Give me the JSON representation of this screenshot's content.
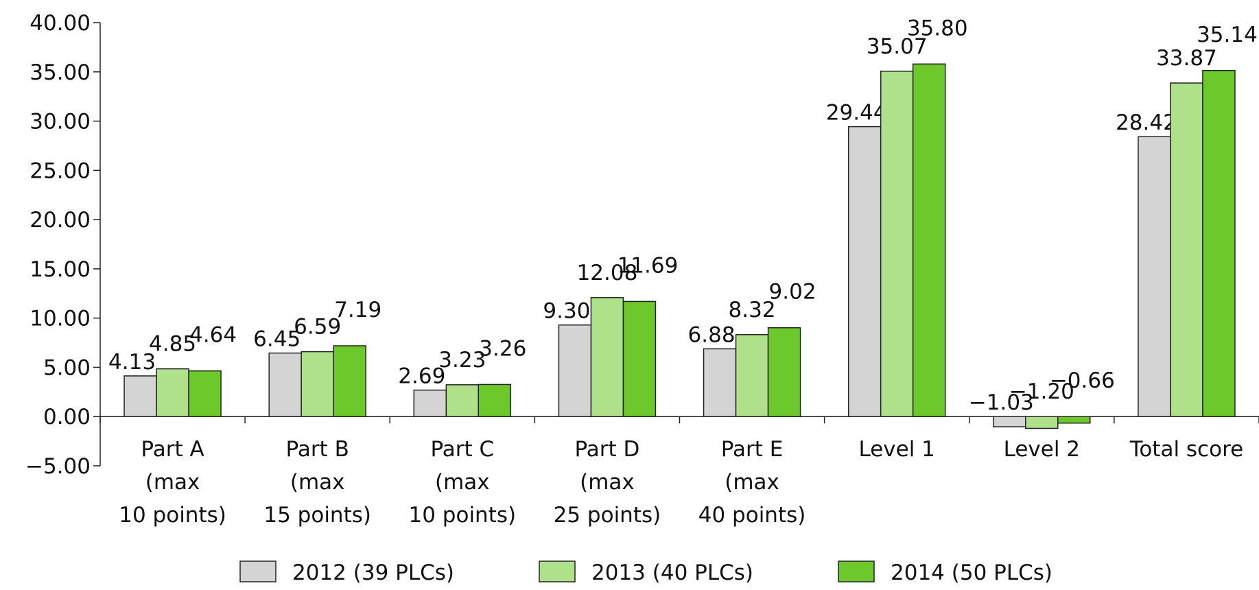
{
  "chart_data": {
    "type": "bar",
    "categories": [
      "Part A\n(max\n10 points)",
      "Part B\n(max\n15 points)",
      "Part C\n(max\n10 points)",
      "Part D\n(max\n25 points)",
      "Part E\n(max\n40 points)",
      "Level 1",
      "Level 2",
      "Total score"
    ],
    "series": [
      {
        "name": "2012 (39 PLCs)",
        "color": "#d4d4d4",
        "values": [
          4.13,
          6.45,
          2.69,
          9.3,
          6.88,
          29.44,
          -1.03,
          28.42
        ],
        "value_labels": [
          "4.13",
          "6.45",
          "2.69",
          "9.30",
          "6.88",
          "29.44",
          "−1.03",
          "28.42"
        ]
      },
      {
        "name": "2013 (40 PLCs)",
        "color": "#afe08a",
        "values": [
          4.85,
          6.59,
          3.23,
          12.08,
          8.32,
          35.07,
          -1.2,
          33.87
        ],
        "value_labels": [
          "4.85",
          "6.59",
          "3.23",
          "12.08",
          "8.32",
          "35.07",
          "−1.20",
          "33.87"
        ]
      },
      {
        "name": "2014 (50 PLCs)",
        "color": "#6dc82c",
        "values": [
          4.64,
          7.19,
          3.26,
          11.69,
          9.02,
          35.8,
          -0.66,
          35.14
        ],
        "value_labels": [
          "4.64",
          "7.19",
          "3.26",
          "11.69",
          "9.02",
          "35.80",
          "−0.66",
          "35.14"
        ]
      }
    ],
    "ylim": [
      -5,
      40
    ],
    "yticks": [
      {
        "value": 40,
        "label": "40.00"
      },
      {
        "value": 35,
        "label": "35.00"
      },
      {
        "value": 30,
        "label": "30.00"
      },
      {
        "value": 25,
        "label": "25.00"
      },
      {
        "value": 20,
        "label": "20.00"
      },
      {
        "value": 15,
        "label": "15.00"
      },
      {
        "value": 10,
        "label": "10.00"
      },
      {
        "value": 5,
        "label": "5.00"
      },
      {
        "value": 0,
        "label": "0.00"
      },
      {
        "value": -5,
        "label": "−5.00"
      }
    ],
    "grid": false,
    "legend": "bottom"
  }
}
